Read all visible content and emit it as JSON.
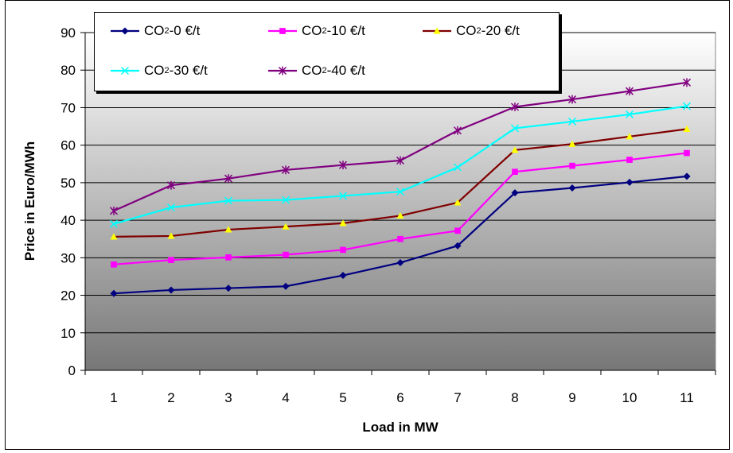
{
  "chart_data": {
    "type": "line",
    "title": "",
    "xlabel": "Load in MW",
    "ylabel": "Price in Euro/MWh",
    "ylim": [
      0,
      90
    ],
    "yticks": [
      "0",
      "10",
      "20",
      "30",
      "40",
      "50",
      "60",
      "70",
      "80",
      "90"
    ],
    "categories": [
      "1",
      "2",
      "3",
      "4",
      "5",
      "6",
      "7",
      "8",
      "9",
      "10",
      "11"
    ],
    "grid": true,
    "legend_position": "top",
    "series": [
      {
        "prefix": "CO",
        "sub": "2",
        "suffix": "-0 €/t",
        "color": "#000080",
        "marker": "diamond",
        "values": [
          20.5,
          21.4,
          21.9,
          22.4,
          25.3,
          28.7,
          33.2,
          47.3,
          48.6,
          50.1,
          51.7
        ]
      },
      {
        "prefix": "CO",
        "sub": "2",
        "suffix": "-10 €/t",
        "color": "#ff00ff",
        "marker": "square",
        "values": [
          28.2,
          29.4,
          30.1,
          30.8,
          32.1,
          35.0,
          37.2,
          52.9,
          54.5,
          56.1,
          57.9
        ]
      },
      {
        "prefix": "CO",
        "sub": "2",
        "suffix": "-20 €/t",
        "color": "#800000",
        "marker": "triangle",
        "values": [
          35.6,
          35.8,
          37.5,
          38.3,
          39.2,
          41.2,
          44.7,
          58.7,
          60.3,
          62.3,
          64.3
        ]
      },
      {
        "prefix": "CO",
        "sub": "2",
        "suffix": "-30 €/t",
        "color": "#00ffff",
        "marker": "x",
        "values": [
          39.0,
          43.4,
          45.2,
          45.4,
          46.5,
          47.6,
          54.1,
          64.5,
          66.3,
          68.2,
          70.4
        ]
      },
      {
        "prefix": "CO",
        "sub": "2",
        "suffix": "-40 €/t",
        "color": "#800080",
        "marker": "star",
        "values": [
          42.5,
          49.3,
          51.1,
          53.4,
          54.7,
          55.9,
          63.9,
          70.2,
          72.2,
          74.4,
          76.7
        ]
      }
    ]
  }
}
